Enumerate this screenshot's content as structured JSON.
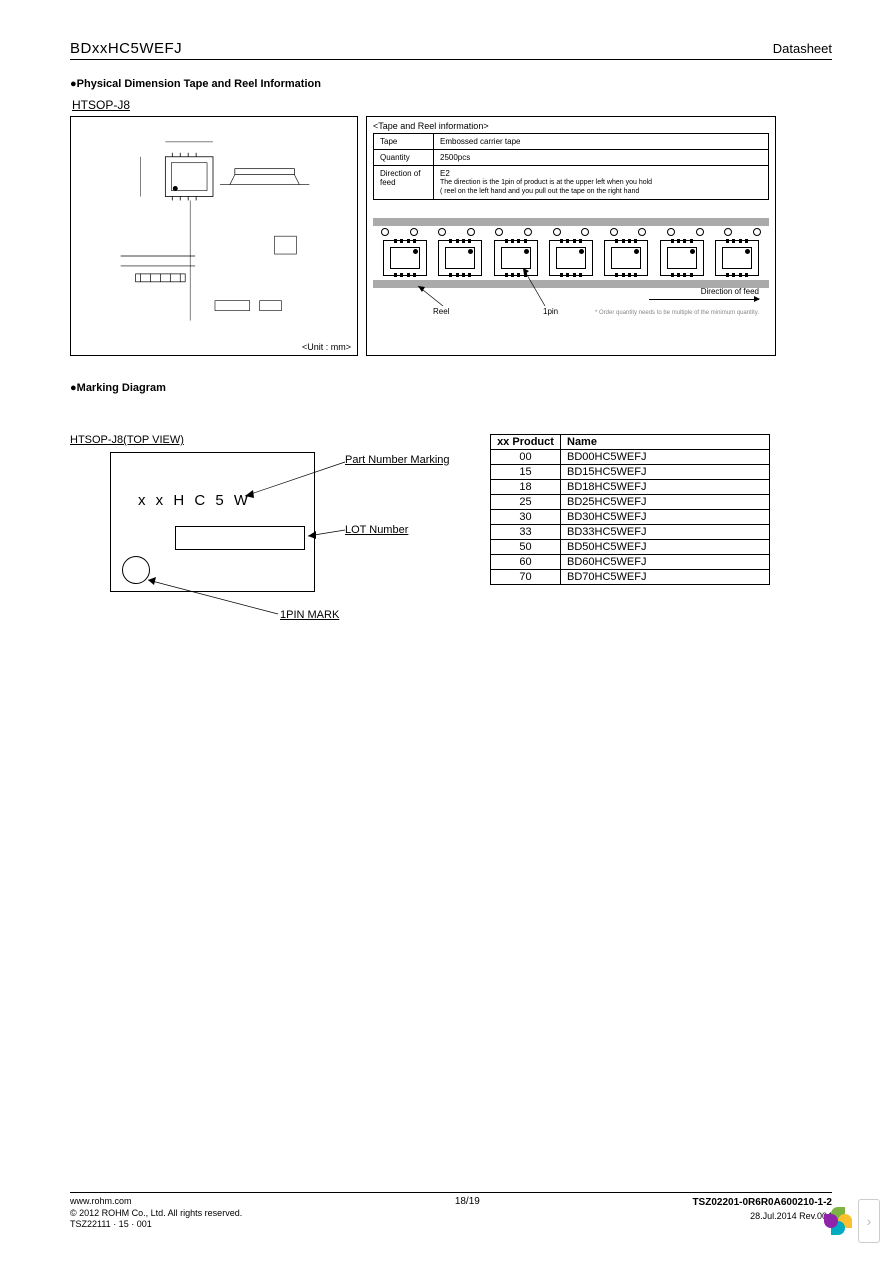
{
  "header": {
    "part_number": "BDxxHC5WEFJ",
    "doc_type": "Datasheet"
  },
  "section1": {
    "title": "Physical Dimension Tape and Reel Information",
    "package_label": "HTSOP-J8",
    "unit_label": "<Unit : mm>"
  },
  "tape_reel": {
    "title": "<Tape and Reel information>",
    "rows": [
      {
        "label": "Tape",
        "value": "Embossed carrier tape"
      },
      {
        "label": "Quantity",
        "value": "2500pcs"
      },
      {
        "label": "Direction of feed",
        "value": "E2",
        "note1": "The direction is the 1pin of product is at the upper left when you hold",
        "note2": "( reel on the left hand and you pull out the tape on the right hand"
      }
    ],
    "reel_label": "Reel",
    "pin1_label": "1pin",
    "feed_dir_label": "Direction of feed",
    "footnote": "* Order quantity needs to be multiple of the minimum quantity.",
    "chip_count": 7,
    "sprocket_count": 14
  },
  "section2": {
    "title": "Marking Diagram",
    "topview_label": "HTSOP-J8(TOP VIEW)",
    "marking_text": "x x H C 5 W",
    "callouts": {
      "part_number": "Part Number Marking",
      "lot": "LOT Number",
      "pin1": "1PIN MARK"
    }
  },
  "product_table": {
    "headers": [
      "xx Product",
      "Name"
    ],
    "rows": [
      [
        "00",
        "BD00HC5WEFJ"
      ],
      [
        "15",
        "BD15HC5WEFJ"
      ],
      [
        "18",
        "BD18HC5WEFJ"
      ],
      [
        "25",
        "BD25HC5WEFJ"
      ],
      [
        "30",
        "BD30HC5WEFJ"
      ],
      [
        "33",
        "BD33HC5WEFJ"
      ],
      [
        "50",
        "BD50HC5WEFJ"
      ],
      [
        "60",
        "BD60HC5WEFJ"
      ],
      [
        "70",
        "BD70HC5WEFJ"
      ]
    ]
  },
  "footer": {
    "url": "www.rohm.com",
    "copyright": "© 2012 ROHM Co., Ltd. All rights reserved.",
    "tsz_left": "TSZ22111 · 15 · 001",
    "page": "18/19",
    "doc_number": "TSZ02201-0R6R0A600210-1-2",
    "date_rev": "28.Jul.2014 Rev.004"
  }
}
